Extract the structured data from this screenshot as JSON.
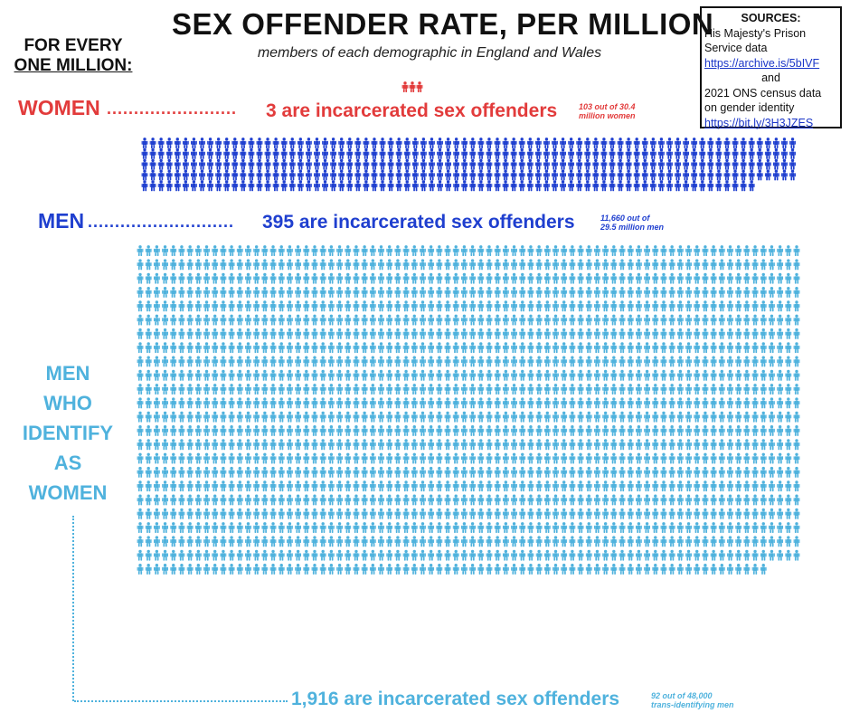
{
  "header": {
    "title": "SEX OFFENDER RATE, PER MILLION",
    "subtitle": "members of each demographic in England and Wales",
    "for_every_line1": "FOR EVERY",
    "for_every_line2": "ONE MILLION:"
  },
  "sources": {
    "heading": "SOURCES:",
    "line1": "His Majesty's Prison",
    "line2": "Service data",
    "link1": "https://archive.is/5bIVF",
    "and": "and",
    "line3": "2021 ONS census data",
    "line4": "on gender identity",
    "link2": "https://bit.ly/3H3JZES"
  },
  "groups": {
    "women": {
      "label": "WOMEN",
      "leader": "........................",
      "stat": "3 are incarcerated sex offenders",
      "note1": "103 out of 30.4",
      "note2": "million women"
    },
    "men": {
      "label": "MEN",
      "leader": "...........................",
      "stat": "395 are incarcerated sex offenders",
      "note1": "11,660 out of",
      "note2": "29.5 million men"
    },
    "trans": {
      "label": [
        "MEN",
        "WHO",
        "IDENTIFY",
        "AS",
        "WOMEN"
      ],
      "stat": "1,916 are incarcerated sex offenders",
      "note1": "92 out of 48,000",
      "note2": "trans-identifying men"
    }
  },
  "chart_data": {
    "type": "pictogram",
    "title": "SEX OFFENDER RATE, PER MILLION",
    "subtitle": "members of each demographic in England and Wales",
    "unit": "incarcerated sex offenders per one million",
    "categories": [
      "WOMEN",
      "MEN",
      "MEN WHO IDENTIFY AS WOMEN"
    ],
    "values": [
      3,
      395,
      1916
    ],
    "counts": [
      "103 out of 30.4 million women",
      "11,660 out of 29.5 million men",
      "92 out of 48,000 trans-identifying men"
    ],
    "colors": {
      "women": "#e23b3b",
      "men": "#1f3fcf",
      "trans": "#4fb2dd"
    }
  }
}
